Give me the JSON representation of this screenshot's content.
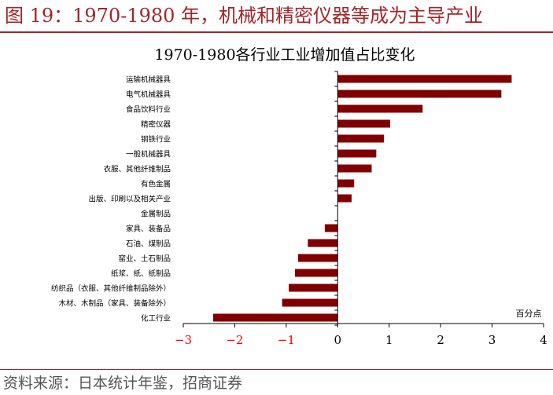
{
  "figure": {
    "title": "图 19：1970-1980 年，机械和精密仪器等成为主导产业",
    "source": "资料来源：日本统计年鉴，招商证券"
  },
  "colors": {
    "accent": "#a0262b",
    "bar": "#800000",
    "negative_tick": "#ff0000",
    "text": "#000000"
  },
  "chart_data": {
    "type": "bar",
    "orientation": "horizontal",
    "title": "1970-1980各行业工业增加值占比变化",
    "unit_label": "百分点",
    "xlim": [
      -3,
      4
    ],
    "xticks": [
      -3,
      -2,
      -1,
      0,
      1,
      2,
      3,
      4
    ],
    "grid": false,
    "categories": [
      "运输机械器具",
      "电气机械器具",
      "食品饮料行业",
      "精密仪器",
      "钢铁行业",
      "一般机械器具",
      "衣服、其他纤维制品",
      "有色金属",
      "出版、印刷以及相关产业",
      "金属制品",
      "家具、装备品",
      "石油、煤制品",
      "窑业、土石制品",
      "纸浆、纸、纸制品",
      "纺织品（衣服、其他纤维制品除外）",
      "木材、木制品（家具、装备除外）",
      "化工行业"
    ],
    "values": [
      3.38,
      3.18,
      1.65,
      1.02,
      0.9,
      0.75,
      0.66,
      0.32,
      0.27,
      0.0,
      -0.25,
      -0.58,
      -0.77,
      -0.83,
      -0.95,
      -1.08,
      -2.42
    ]
  }
}
